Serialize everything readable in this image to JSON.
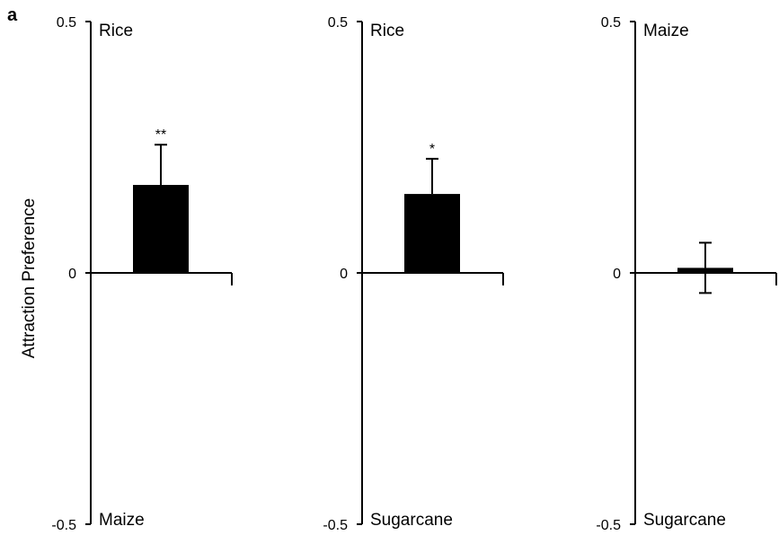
{
  "figure": {
    "panel_letter": "a",
    "y_axis_label": "Attraction Preference"
  },
  "chart_data": [
    {
      "type": "bar",
      "categories": [
        ""
      ],
      "values": [
        0.175
      ],
      "error": [
        0.08
      ],
      "significance": [
        "**"
      ],
      "ylim": [
        -0.5,
        0.5
      ],
      "yticks": [
        0.5,
        0,
        -0.5
      ],
      "ytick_labels": [
        "0.5",
        "0",
        "-0.5"
      ],
      "top_label": "Rice",
      "bottom_label": "Maize",
      "ylabel": "Attraction Preference",
      "xlabel": "",
      "grid": false
    },
    {
      "type": "bar",
      "categories": [
        ""
      ],
      "values": [
        0.157
      ],
      "error": [
        0.07
      ],
      "significance": [
        "*"
      ],
      "ylim": [
        -0.5,
        0.5
      ],
      "yticks": [
        0.5,
        0,
        -0.5
      ],
      "ytick_labels": [
        "0.5",
        "0",
        "-0.5"
      ],
      "top_label": "Rice",
      "bottom_label": "Sugarcane",
      "xlabel": "",
      "grid": false
    },
    {
      "type": "bar",
      "categories": [
        ""
      ],
      "values": [
        0.01
      ],
      "error": [
        0.05
      ],
      "significance": [
        ""
      ],
      "ylim": [
        -0.5,
        0.5
      ],
      "yticks": [
        0.5,
        0,
        -0.5
      ],
      "ytick_labels": [
        "0.5",
        "0",
        "-0.5"
      ],
      "top_label": "Maize",
      "bottom_label": "Sugarcane",
      "xlabel": "",
      "grid": false
    }
  ],
  "colors": {
    "bar": "#000000",
    "axis": "#000000",
    "background": "#ffffff"
  }
}
